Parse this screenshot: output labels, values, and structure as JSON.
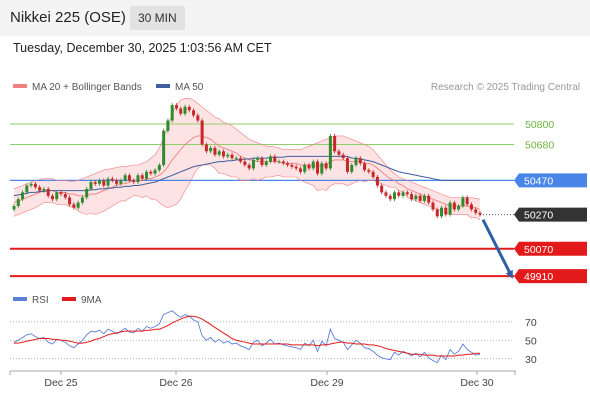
{
  "header": {
    "title": "Nikkei 225 (OSE)",
    "interval": "30 MIN"
  },
  "timestamp": "Tuesday, December 30, 2025 1:03:56 AM CET",
  "credit": "Research © 2025 Trading Central",
  "colors": {
    "bollinger_line": "#f08080",
    "bollinger_fill": "#fde3e3",
    "ma50": "#3f5fa0",
    "resistance": "#8ecf6a",
    "pivot": "#4a86e8",
    "support": "#e31a1a",
    "candle_up": "#2e8b2e",
    "candle_down": "#c62828",
    "price_box": "#333333",
    "rsi": "#5b7fd6",
    "rsi_ma": "#e31a1a",
    "arrow": "#2f5ea8"
  },
  "chart_data": [
    {
      "type": "candlestick",
      "legend": [
        {
          "name": "MA 20 + Bollinger Bands",
          "color": "#f08080"
        },
        {
          "name": "MA 50",
          "color": "#3f5fa0"
        }
      ],
      "x_ticks": [
        "Dec 25",
        "Dec 26",
        "Dec 29",
        "Dec 30"
      ],
      "ylim": [
        49870,
        50940
      ],
      "levels": [
        {
          "kind": "resistance",
          "value": 50800,
          "label": "50800"
        },
        {
          "kind": "resistance",
          "value": 50680,
          "label": "50680"
        },
        {
          "kind": "pivot",
          "value": 50470,
          "label": "50470"
        },
        {
          "kind": "support",
          "value": 50070,
          "label": "50070"
        },
        {
          "kind": "support",
          "value": 49910,
          "label": "49910"
        }
      ],
      "last_price": {
        "value": 50270,
        "label": "50270"
      },
      "forecast": {
        "from": 50240,
        "to": 49910,
        "direction": "down"
      },
      "close": [
        50320,
        50360,
        50400,
        50440,
        50450,
        50430,
        50410,
        50420,
        50380,
        50360,
        50400,
        50390,
        50370,
        50330,
        50310,
        50340,
        50370,
        50420,
        50460,
        50450,
        50470,
        50440,
        50480,
        50470,
        50450,
        50470,
        50500,
        50470,
        50460,
        50500,
        50480,
        50520,
        50510,
        50530,
        50560,
        50760,
        50820,
        50910,
        50890,
        50860,
        50900,
        50880,
        50850,
        50820,
        50680,
        50640,
        50660,
        50620,
        50640,
        50610,
        50620,
        50600,
        50600,
        50580,
        50560,
        50540,
        50590,
        50600,
        50560,
        50580,
        50610,
        50580,
        50580,
        50570,
        50560,
        50550,
        50540,
        50520,
        50560,
        50540,
        50580,
        50510,
        50570,
        50540,
        50730,
        50640,
        50620,
        50600,
        50520,
        50560,
        50600,
        50570,
        50530,
        50520,
        50490,
        50440,
        50400,
        50380,
        50360,
        50400,
        50380,
        50400,
        50390,
        50360,
        50380,
        50350,
        50380,
        50340,
        50300,
        50260,
        50310,
        50270,
        50340,
        50300,
        50320,
        50370,
        50330,
        50300,
        50280,
        50270
      ],
      "ma20": [
        50340,
        50350,
        50360,
        50370,
        50380,
        50390,
        50400,
        50410,
        50410,
        50410,
        50400,
        50400,
        50400,
        50390,
        50390,
        50380,
        50380,
        50380,
        50390,
        50390,
        50400,
        50410,
        50420,
        50430,
        50440,
        50450,
        50450,
        50460,
        50470,
        50470,
        50470,
        50480,
        50480,
        50490,
        50500,
        50520,
        50550,
        50590,
        50620,
        50650,
        50680,
        50700,
        50720,
        50730,
        50730,
        50720,
        50710,
        50690,
        50670,
        50660,
        50650,
        50640,
        50630,
        50610,
        50600,
        50590,
        50590,
        50580,
        50580,
        50580,
        50580,
        50580,
        50580,
        50570,
        50570,
        50570,
        50570,
        50560,
        50560,
        50560,
        50560,
        50550,
        50560,
        50560,
        50580,
        50590,
        50590,
        50590,
        50580,
        50580,
        50580,
        50580,
        50570,
        50570,
        50560,
        50540,
        50520,
        50500,
        50480,
        50470,
        50450,
        50440,
        50420,
        50410,
        50400,
        50390,
        50380,
        50370,
        50360,
        50350,
        50340,
        50330,
        50320,
        50320,
        50320,
        50320,
        50320,
        50310,
        50310,
        50300
      ],
      "bollinger_upper": [
        50420,
        50430,
        50440,
        50450,
        50460,
        50470,
        50475,
        50480,
        50480,
        50480,
        50470,
        50470,
        50470,
        50465,
        50465,
        50470,
        50480,
        50490,
        50500,
        50510,
        50520,
        50530,
        50535,
        50540,
        50545,
        50550,
        50550,
        50555,
        50560,
        50560,
        50570,
        50580,
        50600,
        50620,
        50660,
        50720,
        50790,
        50860,
        50910,
        50940,
        50950,
        50950,
        50940,
        50920,
        50900,
        50880,
        50860,
        50840,
        50830,
        50810,
        50800,
        50790,
        50770,
        50750,
        50730,
        50710,
        50700,
        50690,
        50680,
        50670,
        50670,
        50665,
        50660,
        50650,
        50650,
        50650,
        50650,
        50650,
        50660,
        50670,
        50680,
        50690,
        50700,
        50710,
        50720,
        50730,
        50730,
        50730,
        50720,
        50710,
        50700,
        50690,
        50680,
        50670,
        50650,
        50620,
        50590,
        50560,
        50530,
        50510,
        50490,
        50480,
        50470,
        50460,
        50450,
        50440,
        50430,
        50420,
        50410,
        50400,
        50390,
        50380,
        50370,
        50370,
        50370,
        50370,
        50370,
        50370,
        50365,
        50360
      ],
      "bollinger_lower": [
        50260,
        50270,
        50280,
        50290,
        50300,
        50310,
        50325,
        50340,
        50340,
        50340,
        50330,
        50330,
        50330,
        50315,
        50315,
        50290,
        50280,
        50270,
        50280,
        50270,
        50280,
        50290,
        50305,
        50320,
        50335,
        50350,
        50350,
        50365,
        50380,
        50380,
        50370,
        50380,
        50360,
        50360,
        50340,
        50320,
        50310,
        50320,
        50330,
        50360,
        50410,
        50450,
        50500,
        50540,
        50560,
        50560,
        50560,
        50540,
        50510,
        50510,
        50500,
        50490,
        50490,
        50470,
        50470,
        50470,
        50480,
        50470,
        50480,
        50490,
        50490,
        50495,
        50500,
        50490,
        50490,
        50490,
        50490,
        50470,
        50460,
        50450,
        50440,
        50410,
        50420,
        50410,
        50440,
        50450,
        50450,
        50450,
        50440,
        50450,
        50460,
        50470,
        50460,
        50470,
        50470,
        50460,
        50450,
        50440,
        50430,
        50430,
        50410,
        50400,
        50370,
        50360,
        50350,
        50340,
        50330,
        50320,
        50310,
        50300,
        50290,
        50280,
        50270,
        50270,
        50270,
        50270,
        50270,
        50250,
        50255,
        50240
      ],
      "ma50": [
        50380,
        50385,
        50390,
        50395,
        50400,
        50400,
        50405,
        50405,
        50410,
        50410,
        50410,
        50410,
        50410,
        50410,
        50410,
        50410,
        50410,
        50410,
        50415,
        50415,
        50420,
        50420,
        50425,
        50425,
        50430,
        50430,
        50435,
        50435,
        50440,
        50440,
        50445,
        50450,
        50455,
        50460,
        50470,
        50480,
        50490,
        50500,
        50510,
        50520,
        50530,
        50540,
        50550,
        50555,
        50560,
        50565,
        50570,
        50575,
        50580,
        50580,
        50585,
        50585,
        50590,
        50590,
        50595,
        50595,
        50600,
        50600,
        50600,
        50600,
        50605,
        50605,
        50605,
        50605,
        50610,
        50610,
        50610,
        50610,
        50610,
        50610,
        50610,
        50610,
        50610,
        50610,
        50610,
        50610,
        50610,
        50610,
        50610,
        50600,
        50600,
        50595,
        50590,
        50585,
        50580,
        50570,
        50560,
        50550,
        50540,
        50530,
        50520,
        50515,
        50510,
        50505,
        50500,
        50495,
        50490,
        50485,
        50480,
        50475,
        50470,
        50470,
        50470,
        50470,
        50470,
        50470,
        50470,
        50470,
        50470,
        50470
      ]
    },
    {
      "type": "line",
      "legend": [
        {
          "name": "RSI",
          "color": "#5b7fd6"
        },
        {
          "name": "9MA",
          "color": "#e31a1a"
        }
      ],
      "ylim": [
        20,
        85
      ],
      "y_ticks": [
        {
          "value": 70,
          "label": "70"
        },
        {
          "value": 50,
          "label": "50"
        },
        {
          "value": 30,
          "label": "30"
        }
      ],
      "rsi": [
        48,
        50,
        53,
        56,
        57,
        54,
        52,
        53,
        48,
        46,
        51,
        50,
        48,
        44,
        42,
        46,
        50,
        56,
        60,
        59,
        61,
        57,
        62,
        60,
        57,
        60,
        63,
        59,
        58,
        63,
        60,
        65,
        63,
        65,
        68,
        78,
        80,
        82,
        78,
        75,
        78,
        76,
        72,
        70,
        55,
        50,
        53,
        48,
        51,
        47,
        49,
        46,
        47,
        44,
        42,
        40,
        48,
        50,
        44,
        47,
        51,
        46,
        47,
        45,
        44,
        43,
        42,
        40,
        47,
        44,
        50,
        38,
        49,
        44,
        62,
        52,
        50,
        48,
        40,
        45,
        50,
        47,
        42,
        41,
        38,
        34,
        31,
        30,
        29,
        37,
        34,
        38,
        36,
        33,
        36,
        32,
        37,
        31,
        28,
        26,
        34,
        29,
        40,
        35,
        38,
        46,
        40,
        37,
        34,
        35
      ],
      "rsi_ma": [
        47,
        47,
        48,
        49,
        50,
        51,
        52,
        52,
        52,
        51,
        51,
        50,
        50,
        49,
        48,
        47,
        47,
        48,
        49,
        51,
        52,
        54,
        56,
        57,
        58,
        59,
        60,
        60,
        60,
        60,
        60,
        61,
        61,
        62,
        62,
        64,
        66,
        69,
        71,
        73,
        75,
        76,
        76,
        75,
        73,
        70,
        67,
        64,
        61,
        58,
        55,
        52,
        50,
        49,
        48,
        47,
        46,
        46,
        46,
        46,
        46,
        46,
        46,
        46,
        46,
        45,
        45,
        45,
        45,
        45,
        45,
        44,
        45,
        45,
        46,
        47,
        48,
        48,
        47,
        47,
        46,
        46,
        46,
        45,
        45,
        44,
        43,
        41,
        40,
        39,
        38,
        37,
        36,
        35,
        35,
        35,
        34,
        34,
        34,
        33,
        33,
        33,
        33,
        33,
        34,
        34,
        35,
        35,
        36,
        36
      ]
    }
  ]
}
